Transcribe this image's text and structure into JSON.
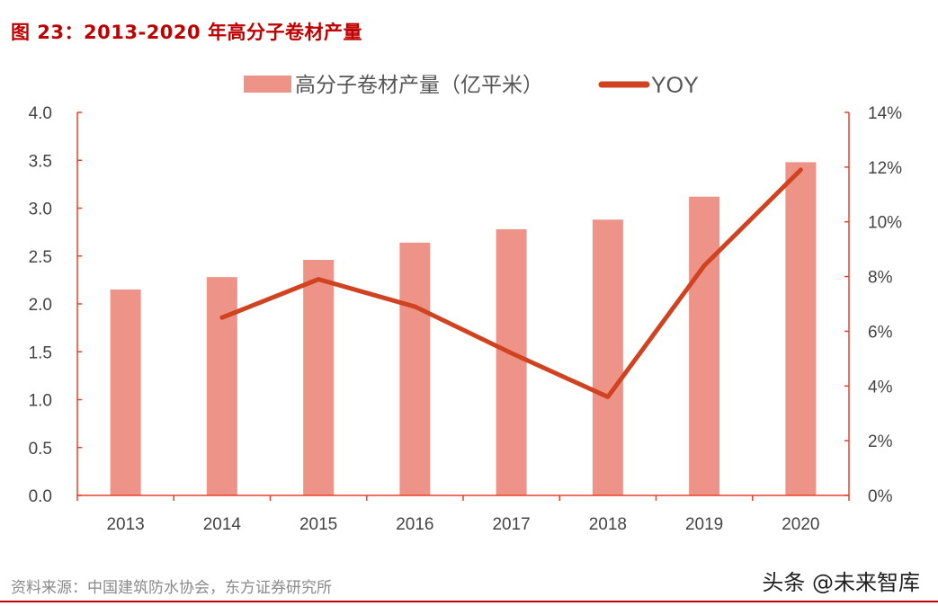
{
  "title": "图 23：2013-2020 年高分子卷材产量",
  "source": "资料来源：中国建筑防水协会，东方证券研究所",
  "watermark": "头条 @未来智库",
  "chart_data": {
    "type": "bar+line",
    "categories": [
      "2013",
      "2014",
      "2015",
      "2016",
      "2017",
      "2018",
      "2019",
      "2020"
    ],
    "series": [
      {
        "name": "高分子卷材产量（亿平米）",
        "type": "bar",
        "axis": "left",
        "color": "#ee9387",
        "values": [
          2.15,
          2.28,
          2.46,
          2.64,
          2.78,
          2.88,
          3.12,
          3.48
        ]
      },
      {
        "name": "YOY",
        "type": "line",
        "axis": "right",
        "color": "#d04320",
        "values": [
          null,
          6.5,
          7.9,
          6.9,
          5.2,
          3.6,
          8.4,
          11.9
        ]
      }
    ],
    "left_axis": {
      "ylim": [
        0,
        4.0
      ],
      "ticks": [
        "0.0",
        "0.5",
        "1.0",
        "1.5",
        "2.0",
        "2.5",
        "3.0",
        "3.5",
        "4.0"
      ]
    },
    "right_axis": {
      "ylim": [
        0,
        14
      ],
      "unit": "%",
      "ticks": [
        "0%",
        "2%",
        "4%",
        "6%",
        "8%",
        "10%",
        "12%",
        "14%"
      ]
    },
    "axis_color": "#e8402a",
    "legend_position": "top",
    "grid": false
  }
}
